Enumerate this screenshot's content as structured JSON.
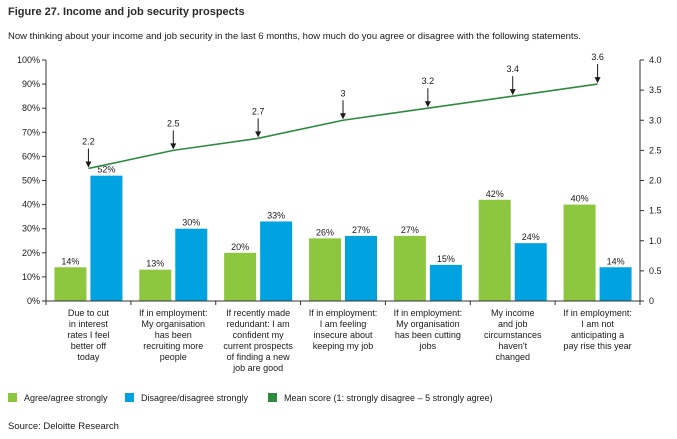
{
  "figure": {
    "title": "Figure 27. Income and job security prospects",
    "subtitle": "Now thinking about your income and job security in the last 6 months, how much do you agree or disagree with the following statements.",
    "source": "Source: Deloitte Research"
  },
  "chart_data": {
    "type": "bar",
    "categories": [
      [
        "Due to cut",
        "in interest",
        "rates I feel",
        "better off",
        "today"
      ],
      [
        "If in employment:",
        "My organisation",
        "has been",
        "recruiting more",
        "people"
      ],
      [
        "If recently made",
        "redundant: I am",
        "confident my",
        "current prospects",
        "of finding a new",
        "job are good"
      ],
      [
        "If in employment:",
        "I am feeling",
        "insecure about",
        "keeping my job"
      ],
      [
        "If in employment:",
        "My organisation",
        "has been cutting",
        "jobs"
      ],
      [
        "My income",
        "and job",
        "circumstances",
        "haven't",
        "changed"
      ],
      [
        "If in employment:",
        "I am not",
        "anticipating a",
        "pay rise this year"
      ]
    ],
    "series": [
      {
        "name": "Agree/agree strongly",
        "type": "bar",
        "axis": "left",
        "color": "#8dc63f",
        "values": [
          14,
          13,
          20,
          26,
          27,
          42,
          40
        ],
        "labels": [
          "14%",
          "13%",
          "20%",
          "26%",
          "27%",
          "42%",
          "40%"
        ]
      },
      {
        "name": "Disagree/disagree strongly",
        "type": "bar",
        "axis": "left",
        "color": "#00a3e0",
        "values": [
          52,
          30,
          33,
          27,
          15,
          24,
          14
        ],
        "labels": [
          "52%",
          "30%",
          "33%",
          "27%",
          "15%",
          "24%",
          "14%"
        ]
      },
      {
        "name": "Mean score (1: strongly disagree – 5 strongly agree)",
        "type": "line",
        "axis": "right",
        "color": "#2e8b3e",
        "values": [
          2.2,
          2.5,
          2.7,
          3,
          3.2,
          3.4,
          3.6
        ],
        "labels": [
          "2.2",
          "2.5",
          "2.7",
          "3",
          "3.2",
          "3.4",
          "3.6"
        ]
      }
    ],
    "y_left": {
      "ylim": [
        0,
        100
      ],
      "ticks": [
        "0%",
        "10%",
        "20%",
        "30%",
        "40%",
        "50%",
        "60%",
        "70%",
        "80%",
        "90%",
        "100%"
      ]
    },
    "y_right": {
      "ylim": [
        0,
        4
      ],
      "ticks": [
        "0",
        "0.5",
        "1.0",
        "1.5",
        "2.0",
        "2.5",
        "3.0",
        "3.5",
        "4.0"
      ]
    },
    "grid": false,
    "legend_position": "bottom-left",
    "arrow_color": "#1a1a1a",
    "axis_color": "#333333"
  }
}
